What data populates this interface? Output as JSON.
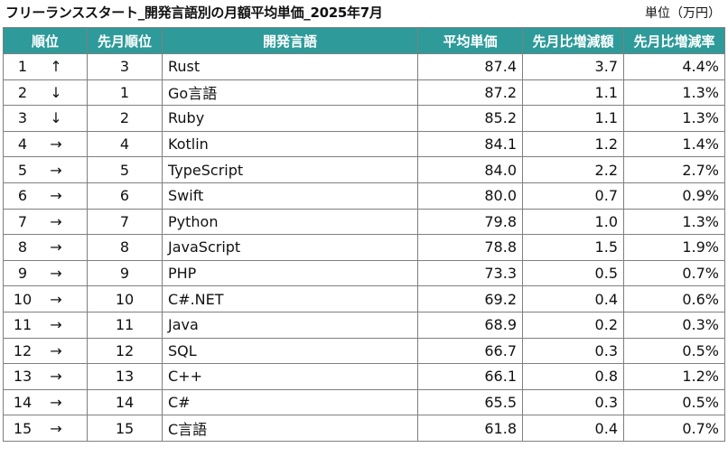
{
  "title": "フリーランススタート_開発言語別の月額平均単価_2025年7月",
  "unit_label": "単位（万円）",
  "columns": {
    "rank": "順位",
    "prev_rank": "先月順位",
    "language": "開発言語",
    "avg_price": "平均単価",
    "mom_change": "先月比増減額",
    "mom_rate": "先月比増減率"
  },
  "rows": [
    {
      "rank": "1",
      "arrow": "↑",
      "prev": "3",
      "lang": "Rust",
      "avg": "87.4",
      "diff": "3.7",
      "rate": "4.4%"
    },
    {
      "rank": "2",
      "arrow": "↓",
      "prev": "1",
      "lang": "Go言語",
      "avg": "87.2",
      "diff": "1.1",
      "rate": "1.3%"
    },
    {
      "rank": "3",
      "arrow": "↓",
      "prev": "2",
      "lang": "Ruby",
      "avg": "85.2",
      "diff": "1.1",
      "rate": "1.3%"
    },
    {
      "rank": "4",
      "arrow": "→",
      "prev": "4",
      "lang": "Kotlin",
      "avg": "84.1",
      "diff": "1.2",
      "rate": "1.4%"
    },
    {
      "rank": "5",
      "arrow": "→",
      "prev": "5",
      "lang": "TypeScript",
      "avg": "84.0",
      "diff": "2.2",
      "rate": "2.7%"
    },
    {
      "rank": "6",
      "arrow": "→",
      "prev": "6",
      "lang": "Swift",
      "avg": "80.0",
      "diff": "0.7",
      "rate": "0.9%"
    },
    {
      "rank": "7",
      "arrow": "→",
      "prev": "7",
      "lang": "Python",
      "avg": "79.8",
      "diff": "1.0",
      "rate": "1.3%"
    },
    {
      "rank": "8",
      "arrow": "→",
      "prev": "8",
      "lang": "JavaScript",
      "avg": "78.8",
      "diff": "1.5",
      "rate": "1.9%"
    },
    {
      "rank": "9",
      "arrow": "→",
      "prev": "9",
      "lang": "PHP",
      "avg": "73.3",
      "diff": "0.5",
      "rate": "0.7%"
    },
    {
      "rank": "10",
      "arrow": "→",
      "prev": "10",
      "lang": "C#.NET",
      "avg": "69.2",
      "diff": "0.4",
      "rate": "0.6%"
    },
    {
      "rank": "11",
      "arrow": "→",
      "prev": "11",
      "lang": "Java",
      "avg": "68.9",
      "diff": "0.2",
      "rate": "0.3%"
    },
    {
      "rank": "12",
      "arrow": "→",
      "prev": "12",
      "lang": "SQL",
      "avg": "66.7",
      "diff": "0.3",
      "rate": "0.5%"
    },
    {
      "rank": "13",
      "arrow": "→",
      "prev": "13",
      "lang": "C++",
      "avg": "66.1",
      "diff": "0.8",
      "rate": "1.2%"
    },
    {
      "rank": "14",
      "arrow": "→",
      "prev": "14",
      "lang": "C#",
      "avg": "65.5",
      "diff": "0.3",
      "rate": "0.5%"
    },
    {
      "rank": "15",
      "arrow": "→",
      "prev": "15",
      "lang": "C言語",
      "avg": "61.8",
      "diff": "0.4",
      "rate": "0.7%"
    }
  ],
  "colors": {
    "header_bg": "#2e9a9a",
    "header_text": "#ffffff",
    "border": "#7f7f7f"
  }
}
